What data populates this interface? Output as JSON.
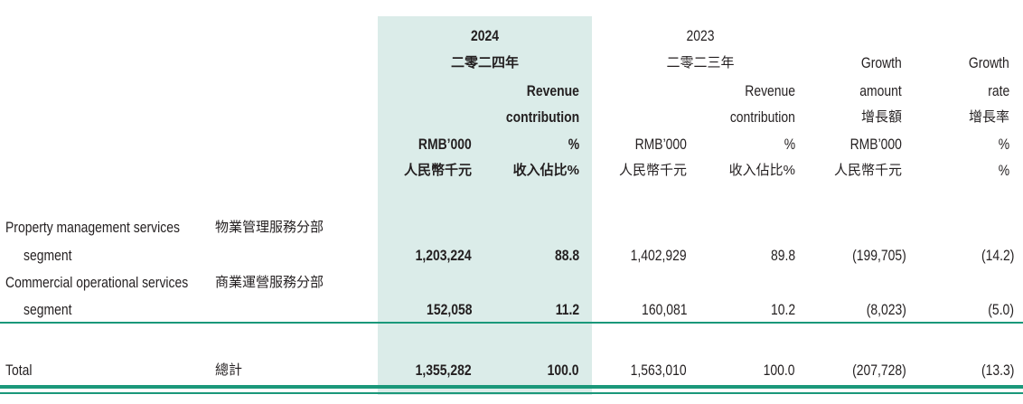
{
  "header": {
    "groups": [
      {
        "year": "2024",
        "year_zh": "二零二四年"
      },
      {
        "year": "2023",
        "year_zh": "二零二三年"
      }
    ],
    "columns": [
      {
        "lines": [
          "RMB’000",
          "人民幣千元"
        ]
      },
      {
        "lines": [
          "Revenue",
          "contribution",
          "%",
          "收入佔比%"
        ]
      },
      {
        "lines": [
          "RMB’000",
          "人民幣千元"
        ]
      },
      {
        "lines": [
          "Revenue",
          "contribution",
          "%",
          "收入佔比%"
        ]
      },
      {
        "lines": [
          "Growth",
          "amount",
          "增長額",
          "RMB’000",
          "人民幣千元"
        ]
      },
      {
        "lines": [
          "Growth",
          "rate",
          "增長率",
          "%",
          "%"
        ]
      }
    ]
  },
  "rows": [
    {
      "label_en": [
        "Property management services",
        "segment"
      ],
      "label_zh": "物業管理服務分部",
      "values": [
        "1,203,224",
        "88.8",
        "1,402,929",
        "89.8",
        "(199,705)",
        "(14.2)"
      ]
    },
    {
      "label_en": [
        "Commercial operational services",
        "segment"
      ],
      "label_zh": "商業運營服務分部",
      "values": [
        "152,058",
        "11.2",
        "160,081",
        "10.2",
        "(8,023)",
        "(5.0)"
      ]
    }
  ],
  "total": {
    "label_en": "Total",
    "label_zh": "總計",
    "values": [
      "1,355,282",
      "100.0",
      "1,563,010",
      "100.0",
      "(207,728)",
      "(13.3)"
    ]
  },
  "colors": {
    "highlight_band": "#dbece9",
    "rule": "#1a987a",
    "text": "#231f20"
  }
}
